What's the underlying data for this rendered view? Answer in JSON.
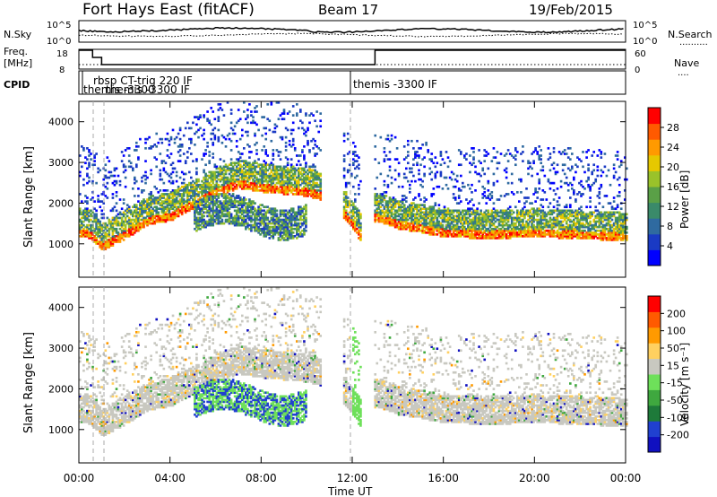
{
  "header": {
    "title": "Fort Hays East (fitACF)",
    "beam": "Beam 17",
    "date": "19/Feb/2015"
  },
  "noise_panel": {
    "left_label": "N.Sky",
    "right_label": "N.Search",
    "right_legend": "..........",
    "y_ticks": [
      "10^5",
      "10^0"
    ]
  },
  "freq_panel": {
    "left_label_1": "Freq.",
    "left_label_2": "[MHz]",
    "left_ticks": [
      "18",
      "8"
    ],
    "right_label": "Nave",
    "right_legend": "....",
    "right_ticks": [
      "60",
      "0"
    ]
  },
  "cpid_panel": {
    "label": "CPID",
    "programs": [
      "themis -3300",
      "rbsp CT-trig 220 IF",
      "themis -3300 IF",
      "themis -3300 IF"
    ]
  },
  "power_panel": {
    "ylabel": "Slant Range [km]",
    "colorbar_label": "Power [dB]",
    "colorbar_ticks": [
      "28",
      "24",
      "20",
      "16",
      "12",
      "8",
      "4"
    ],
    "colorbar_colors": [
      "#0000ff",
      "#1a3ac4",
      "#2f6aa0",
      "#3a8a6a",
      "#5aa047",
      "#9ac22a",
      "#e6c800",
      "#ff9a00",
      "#ff5a00",
      "#ff0000"
    ]
  },
  "velocity_panel": {
    "ylabel": "Slant Range [km]",
    "colorbar_label": "Velocity [m s⁻¹]",
    "colorbar_ticks": [
      "200",
      "100",
      "50",
      "15",
      "-15",
      "-50",
      "-100",
      "-200"
    ],
    "colorbar_colors": [
      "#1010c0",
      "#2040d0",
      "#1e7a3a",
      "#3fa83f",
      "#6ee05a",
      "#c8c8c0",
      "#ffd060",
      "#ff9a00",
      "#ff5a00",
      "#ff0000"
    ]
  },
  "x_axis": {
    "label": "Time UT",
    "ticks": [
      "00:00",
      "04:00",
      "08:00",
      "12:00",
      "16:00",
      "20:00",
      "00:00"
    ]
  },
  "chart_data": {
    "type": "heatmap",
    "title": "Fort Hays East (fitACF)",
    "x_range_hours": [
      0,
      24
    ],
    "y_range_km": [
      180,
      4500
    ],
    "y_ticks_km": [
      1000,
      2000,
      3000,
      4000
    ],
    "freq_mhz_segments": [
      {
        "start_h": 0.0,
        "end_h": 0.6,
        "freq": 18
      },
      {
        "start_h": 0.6,
        "end_h": 1.0,
        "freq": 14
      },
      {
        "start_h": 1.0,
        "end_h": 13.0,
        "freq": 10
      },
      {
        "start_h": 13.0,
        "end_h": 24.0,
        "freq": 18
      }
    ],
    "main_echo_band": [
      {
        "t": 0.0,
        "r": 1600
      },
      {
        "t": 0.5,
        "r": 1550
      },
      {
        "t": 1.0,
        "r": 1250
      },
      {
        "t": 2.0,
        "r": 1550
      },
      {
        "t": 3.0,
        "r": 1900
      },
      {
        "t": 4.0,
        "r": 2000
      },
      {
        "t": 5.0,
        "r": 2300
      },
      {
        "t": 6.0,
        "r": 2600
      },
      {
        "t": 7.0,
        "r": 2800
      },
      {
        "t": 8.0,
        "r": 2700
      },
      {
        "t": 9.0,
        "r": 2650
      },
      {
        "t": 10.0,
        "r": 2600
      },
      {
        "t": 11.0,
        "r": 2450
      },
      {
        "t": 12.0,
        "r": 1800
      },
      {
        "t": 12.3,
        "r": 1500
      },
      {
        "t": 13.0,
        "r": 2000
      },
      {
        "t": 14.0,
        "r": 1800
      },
      {
        "t": 16.0,
        "r": 1600
      },
      {
        "t": 18.0,
        "r": 1550
      },
      {
        "t": 20.0,
        "r": 1600
      },
      {
        "t": 22.0,
        "r": 1550
      },
      {
        "t": 24.0,
        "r": 1500
      }
    ],
    "ground_scatter_patch": {
      "t_start": 5.0,
      "t_end": 10.0,
      "r_low": 1100,
      "r_high": 2200
    }
  }
}
